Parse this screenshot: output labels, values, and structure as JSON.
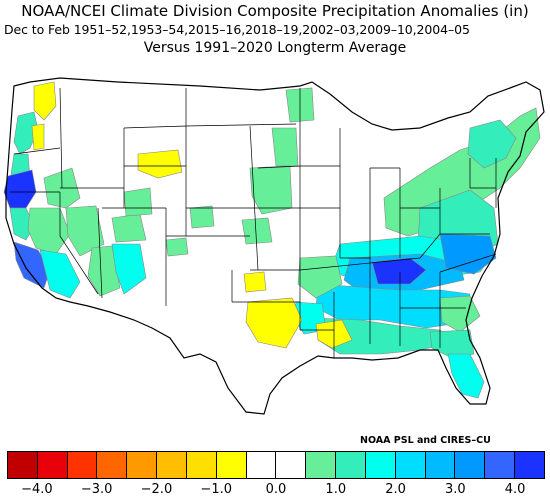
{
  "header": {
    "title": "NOAA/NCEI Climate Division Composite Precipitation Anomalies (in)",
    "subtitle": "Dec to Feb  1951–52,1953–54,2015–16,2018–19,2002–03,2009–10,2004–05",
    "comparison": "Versus 1991–2020 Longterm Average"
  },
  "credit": "NOAA PSL and CIRES–CU",
  "legend": {
    "colors": [
      "#c00000",
      "#e8000a",
      "#ff3300",
      "#ff6600",
      "#ff9900",
      "#ffbf00",
      "#ffdf00",
      "#ffff00",
      "#ffffff",
      "#ffffff",
      "#66ee99",
      "#33eebb",
      "#00ffee",
      "#00ddff",
      "#00bbff",
      "#0099ff",
      "#3366ff",
      "#1a33ff"
    ],
    "tick_labels": [
      "−4.0",
      "−3.0",
      "−2.0",
      "−1.0",
      "0.0",
      "1.0",
      "2.0",
      "3.0",
      "4.0"
    ]
  },
  "map_colors": {
    "land": "#ffffff",
    "slight_dry": "#ffff00",
    "wet_1": "#66ee99",
    "wet_2": "#33eebb",
    "wet_3": "#00ffee",
    "wet_4": "#00ddff",
    "wet_5": "#00bbff",
    "wet_6": "#0099ff",
    "wet_7": "#3366ff",
    "wet_8": "#1a33ff"
  }
}
